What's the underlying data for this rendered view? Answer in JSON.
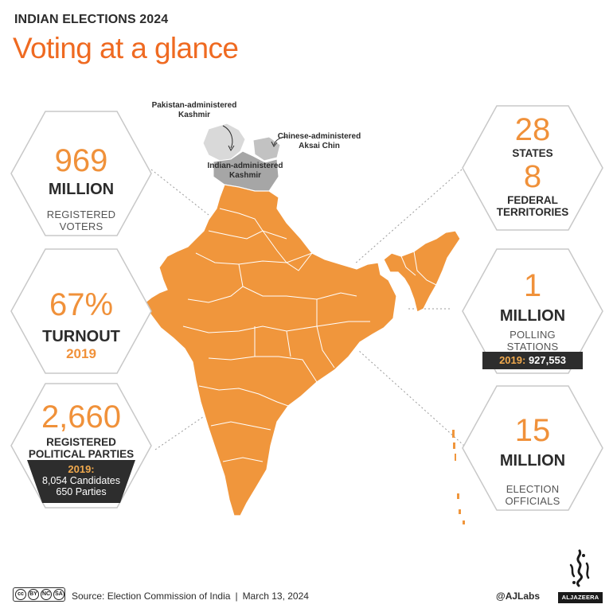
{
  "header": {
    "kicker": "INDIAN ELECTIONS 2024",
    "title": "Voting at a glance"
  },
  "map": {
    "labels": {
      "pak_kashmir": [
        "Pakistan-administered",
        "Kashmir"
      ],
      "china_aksai": [
        "Chinese-administered",
        "Aksai Chin"
      ],
      "india_kashmir": [
        "Indian-administered",
        "Kashmir"
      ]
    },
    "colors": {
      "india": "#f0963c",
      "india_kashmir": "#a6a6a6",
      "pak_kashmir": "#d9d9d9",
      "china_aksai": "#c2c2c2",
      "state_border": "#ffffff"
    }
  },
  "stats": {
    "voters": {
      "value": "969",
      "unit": "MILLION",
      "label_1": "REGISTERED",
      "label_2": "VOTERS"
    },
    "turnout": {
      "value": "67%",
      "label": "TURNOUT",
      "year": "2019"
    },
    "parties": {
      "value": "2,660",
      "label_1": "REGISTERED",
      "label_2": "POLITICAL PARTIES",
      "note_year": "2019:",
      "note_1": "8,054 Candidates",
      "note_2": "650 Parties"
    },
    "states": {
      "states_value": "28",
      "states_label": "STATES",
      "territories_value": "8",
      "territories_label_1": "FEDERAL",
      "territories_label_2": "TERRITORIES"
    },
    "polling": {
      "value": "1",
      "unit": "MILLION",
      "label_1": "POLLING",
      "label_2": "STATIONS",
      "note_year": "2019:",
      "note_value": "927,553"
    },
    "officials": {
      "value": "15",
      "unit": "MILLION",
      "label_1": "ELECTION",
      "label_2": "OFFICIALS"
    }
  },
  "footer": {
    "cc_labels": [
      "cc",
      "BY",
      "NC",
      "SA"
    ],
    "source": "Source: Election Commission of India",
    "separator": "|",
    "date": "March 13, 2024",
    "handle": "@AJLabs",
    "brand": "ALJAZEERA"
  },
  "colors": {
    "accent": "#ef6a21",
    "number": "#f0913a",
    "dark": "#2d2d2d",
    "hex_stroke": "#c8c8c8"
  }
}
